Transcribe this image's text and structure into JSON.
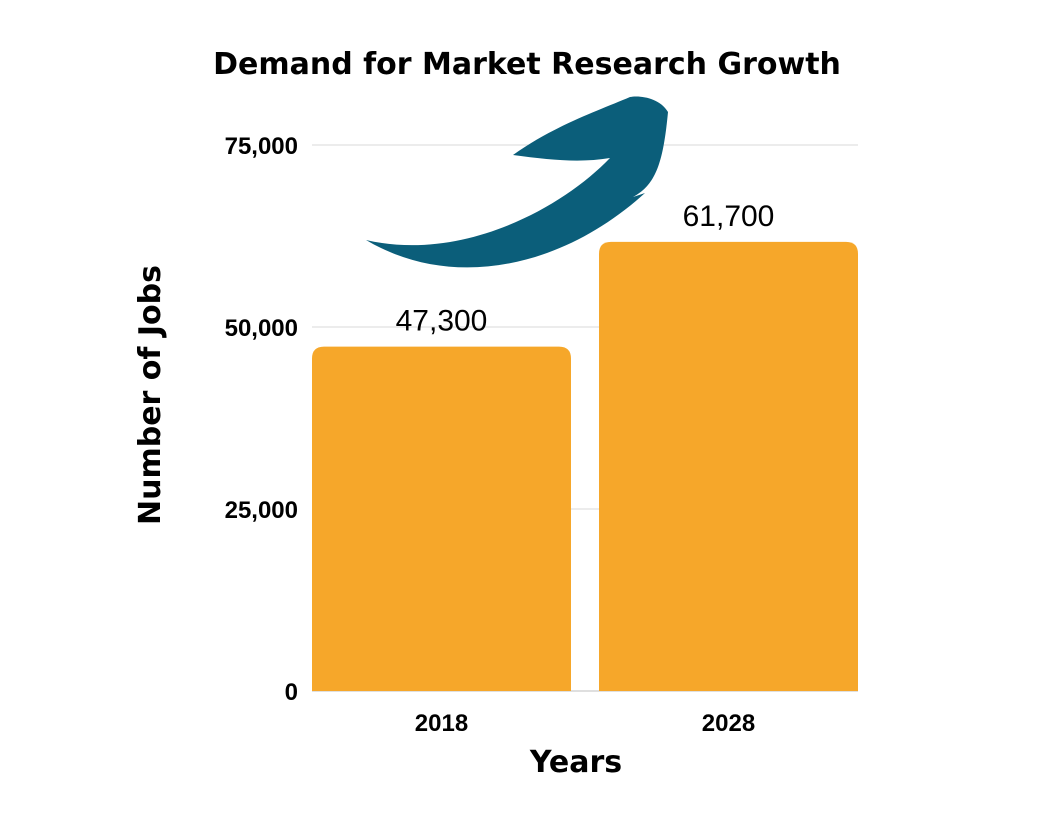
{
  "colors": {
    "bar": "#F6A72A",
    "arrow": "#0B5E7A",
    "grid": "#d9d9d9"
  },
  "chart_data": {
    "type": "bar",
    "title": "Demand for Market Research Growth",
    "xlabel": "Years",
    "ylabel": "Number of Jobs",
    "categories": [
      "2018",
      "2028"
    ],
    "values": [
      47300,
      61700
    ],
    "data_labels": [
      "47,300",
      "61,700"
    ],
    "ylim": [
      0,
      75000
    ],
    "yticks": [
      0,
      25000,
      50000,
      75000
    ],
    "ytick_labels": [
      "0",
      "25,000",
      "50,000",
      "75,000"
    ],
    "grid": true,
    "legend": "none",
    "annotation": "upward-arrow-icon"
  }
}
